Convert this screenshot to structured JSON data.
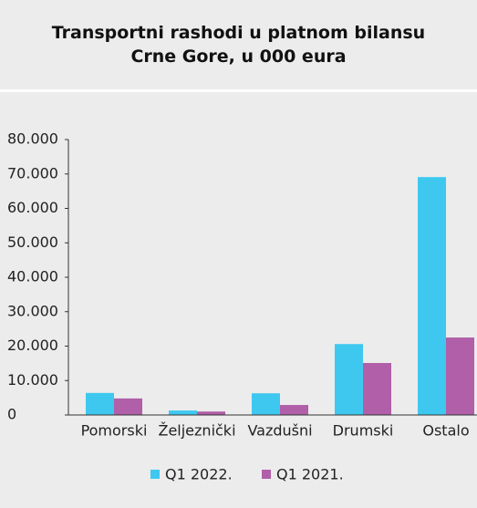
{
  "chart_data": {
    "type": "bar",
    "title": "Transportni rashodi u platnom bilansu Crne Gore, u 000 eura",
    "categories": [
      "Pomorski",
      "Željeznički",
      "Vazdušni",
      "Drumski",
      "Ostalo"
    ],
    "series": [
      {
        "name": "Q1 2022.",
        "color": "#3ec8f0",
        "values": [
          6400,
          1300,
          6300,
          20600,
          69100
        ]
      },
      {
        "name": "Q1 2021.",
        "color": "#b05fa8",
        "values": [
          4800,
          1000,
          2900,
          15100,
          22500
        ]
      }
    ],
    "ylim": [
      0,
      80000
    ],
    "yticks": [
      0,
      {
        "value": 10000,
        "label": "10.000"
      },
      {
        "value": 20000,
        "label": "20.000"
      },
      {
        "value": 30000,
        "label": "30.000"
      },
      {
        "value": 40000,
        "label": "40.000"
      },
      {
        "value": 50000,
        "label": "50.000"
      },
      {
        "value": 60000,
        "label": "60.000"
      },
      {
        "value": 70000,
        "label": "70.000"
      },
      {
        "value": 80000,
        "label": "80.000"
      }
    ],
    "legend": "bottom"
  }
}
